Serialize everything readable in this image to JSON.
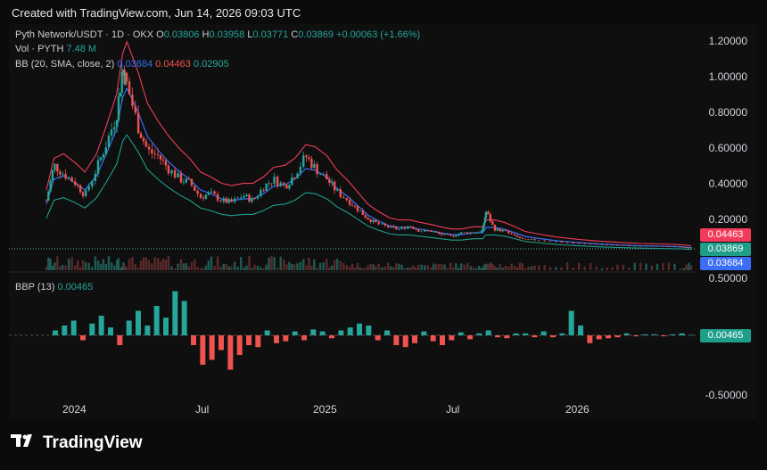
{
  "header": {
    "created": "Created with TradingView.com, Jun 14, 2026 09:03 UTC"
  },
  "legend": {
    "symbol": "Pyth Network/USDT · 1D · OKX",
    "o_label": "O",
    "o_value": "0.03806",
    "h_label": "H",
    "h_value": "0.03958",
    "l_label": "L",
    "l_value": "0.03771",
    "c_label": "C",
    "c_value": "0.03869",
    "change": "+0.00063 (+1.66%)",
    "vol_label": "Vol · PYTH",
    "vol_value": "7.48 M",
    "bb_label": "BB (20, SMA, close, 2)",
    "bb_basis": "0.03684",
    "bb_upper": "0.04463",
    "bb_lower": "0.02905",
    "bbp_label": "BBP (13)",
    "bbp_value": "0.00465"
  },
  "price_axis": [
    "1.20000",
    "1.00000",
    "0.80000",
    "0.60000",
    "0.40000",
    "0.20000"
  ],
  "price_tags": {
    "upper": "0.04463",
    "close": "0.03869",
    "basis": "0.03684"
  },
  "bbp_axis": {
    "top": "0.50000",
    "bottom": "-0.50000",
    "value_tag": "0.00465"
  },
  "time_axis": [
    "2024",
    "Jul",
    "2025",
    "Jul",
    "2026"
  ],
  "colors": {
    "up": "#26a69a",
    "down": "#ef5350",
    "basis": "#3b6df5",
    "upper": "#f23b5a",
    "lower": "#1f9e8a"
  },
  "branding": {
    "logo_text": "TradingView",
    "logo_icon": "tradingview-logo-icon"
  },
  "chart_data": {
    "type": "line",
    "title": "Pyth Network/USDT · 1D · OKX",
    "x": [
      "2023-11-20",
      "2023-12-01",
      "2023-12-15",
      "2024-01-01",
      "2024-01-15",
      "2024-02-01",
      "2024-02-15",
      "2024-03-01",
      "2024-03-10",
      "2024-03-16",
      "2024-04-01",
      "2024-04-15",
      "2024-05-01",
      "2024-05-15",
      "2024-06-01",
      "2024-06-15",
      "2024-07-01",
      "2024-07-15",
      "2024-08-01",
      "2024-08-15",
      "2024-09-01",
      "2024-09-15",
      "2024-10-01",
      "2024-10-15",
      "2024-11-01",
      "2024-11-15",
      "2024-12-01",
      "2024-12-15",
      "2025-01-01",
      "2025-01-15",
      "2025-02-01",
      "2025-02-15",
      "2025-03-01",
      "2025-03-15",
      "2025-04-01",
      "2025-04-15",
      "2025-05-01",
      "2025-05-15",
      "2025-06-01",
      "2025-06-15",
      "2025-07-01",
      "2025-07-15",
      "2025-08-01",
      "2025-08-15",
      "2025-08-20",
      "2025-09-01",
      "2025-09-15",
      "2025-10-01",
      "2025-10-15",
      "2025-11-01",
      "2025-12-01",
      "2026-01-01",
      "2026-02-01",
      "2026-03-01",
      "2026-04-01",
      "2026-05-01",
      "2026-06-01",
      "2026-06-14"
    ],
    "series": [
      {
        "name": "Close",
        "values": [
          0.3,
          0.5,
          0.45,
          0.4,
          0.33,
          0.48,
          0.62,
          0.78,
          1.05,
          0.95,
          0.72,
          0.58,
          0.55,
          0.48,
          0.42,
          0.4,
          0.32,
          0.34,
          0.3,
          0.29,
          0.33,
          0.3,
          0.38,
          0.42,
          0.38,
          0.45,
          0.55,
          0.48,
          0.42,
          0.35,
          0.3,
          0.25,
          0.2,
          0.17,
          0.15,
          0.14,
          0.16,
          0.13,
          0.13,
          0.11,
          0.1,
          0.12,
          0.12,
          0.13,
          0.24,
          0.14,
          0.13,
          0.1,
          0.08,
          0.08,
          0.07,
          0.06,
          0.055,
          0.05,
          0.045,
          0.045,
          0.04,
          0.0387
        ]
      },
      {
        "name": "Basis",
        "values": [
          0.28,
          0.42,
          0.44,
          0.4,
          0.36,
          0.44,
          0.56,
          0.7,
          0.88,
          0.93,
          0.8,
          0.66,
          0.58,
          0.52,
          0.46,
          0.42,
          0.36,
          0.34,
          0.31,
          0.3,
          0.31,
          0.31,
          0.34,
          0.38,
          0.39,
          0.42,
          0.48,
          0.47,
          0.43,
          0.37,
          0.32,
          0.27,
          0.22,
          0.19,
          0.16,
          0.15,
          0.15,
          0.14,
          0.13,
          0.12,
          0.11,
          0.11,
          0.12,
          0.12,
          0.15,
          0.15,
          0.14,
          0.12,
          0.1,
          0.09,
          0.075,
          0.065,
          0.057,
          0.052,
          0.047,
          0.045,
          0.041,
          0.0368
        ]
      }
    ],
    "ylim": [
      0,
      1.2
    ],
    "grid": false
  },
  "bbp_chart": {
    "type": "bar",
    "ylim": [
      -0.5,
      0.5
    ],
    "values": [
      0.05,
      0.1,
      0.15,
      -0.05,
      0.12,
      0.2,
      0.08,
      -0.1,
      0.15,
      0.25,
      0.1,
      0.3,
      0.18,
      0.45,
      0.35,
      -0.1,
      -0.3,
      -0.25,
      -0.15,
      -0.35,
      -0.2,
      -0.1,
      -0.12,
      0.05,
      -0.08,
      -0.06,
      0.04,
      -0.05,
      0.06,
      0.04,
      -0.03,
      0.05,
      0.08,
      0.12,
      0.1,
      -0.05,
      0.05,
      -0.1,
      -0.12,
      -0.08,
      0.04,
      -0.06,
      -0.1,
      -0.05,
      0.03,
      -0.04,
      0.02,
      0.05,
      -0.02,
      -0.03,
      0.02,
      0.02,
      -0.02,
      0.04,
      -0.02,
      0.02,
      0.25,
      0.1,
      -0.08,
      -0.04,
      -0.03,
      -0.02,
      0.02,
      -0.01,
      0.01,
      0.01,
      -0.01,
      0.01,
      0.02,
      0.00465
    ]
  }
}
